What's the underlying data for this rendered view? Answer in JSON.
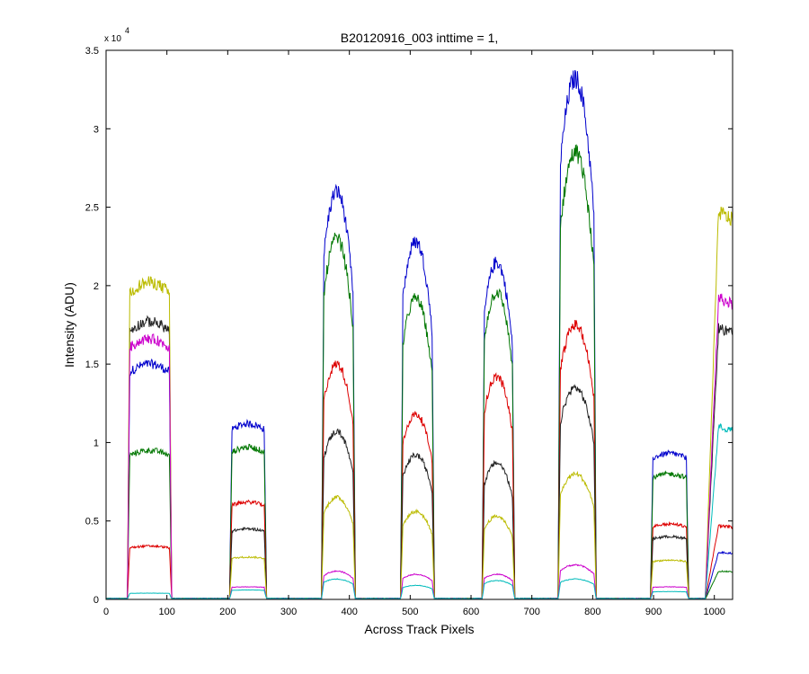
{
  "chart_data": {
    "type": "line",
    "title": "B20120916_003 inttime = 1,",
    "xlabel": "Across Track Pixels",
    "ylabel": "Intensity (ADU)",
    "y_multiplier_text": "x 10",
    "y_multiplier_exponent": "4",
    "xlim": [
      0,
      1030
    ],
    "ylim": [
      0,
      35000
    ],
    "xticks": [
      0,
      100,
      200,
      300,
      400,
      500,
      600,
      700,
      800,
      900,
      1000
    ],
    "yticks": [
      0,
      5000,
      10000,
      15000,
      20000,
      25000,
      30000,
      35000
    ],
    "xtick_labels": [
      "0",
      "100",
      "200",
      "300",
      "400",
      "500",
      "600",
      "700",
      "800",
      "900",
      "1000"
    ],
    "ytick_labels": [
      "0",
      "0.5",
      "1",
      "1.5",
      "2",
      "2.5",
      "3",
      "3.5"
    ],
    "grid": false,
    "legend": "none",
    "segments": [
      {
        "start": 35,
        "end": 108,
        "shape": "flat"
      },
      {
        "start": 203,
        "end": 264,
        "shape": "flat"
      },
      {
        "start": 354,
        "end": 410,
        "shape": "dome"
      },
      {
        "start": 484,
        "end": 540,
        "shape": "dome"
      },
      {
        "start": 618,
        "end": 672,
        "shape": "dome"
      },
      {
        "start": 743,
        "end": 806,
        "shape": "dome"
      },
      {
        "start": 895,
        "end": 958,
        "shape": "flat"
      },
      {
        "start": 985,
        "end": 1030,
        "shape": "rise"
      }
    ],
    "series": [
      {
        "color": "#0000cc",
        "peaks": [
          15000,
          11200,
          26000,
          22800,
          21500,
          33200,
          9300,
          3000
        ]
      },
      {
        "color": "#007700",
        "peaks": [
          9500,
          9700,
          23000,
          19200,
          19600,
          28500,
          8000,
          1800
        ]
      },
      {
        "color": "#dd0000",
        "peaks": [
          3400,
          6200,
          15000,
          11800,
          14200,
          17500,
          4800,
          4700
        ]
      },
      {
        "color": "#222222",
        "peaks": [
          17700,
          4500,
          10700,
          9200,
          8700,
          13500,
          4000,
          17300
        ]
      },
      {
        "color": "#bbbb00",
        "peaks": [
          20200,
          2700,
          6500,
          5600,
          5300,
          8000,
          2500,
          24700
        ]
      },
      {
        "color": "#cc00cc",
        "peaks": [
          16600,
          800,
          1800,
          1600,
          1600,
          2200,
          800,
          19200
        ]
      },
      {
        "color": "#00bbbb",
        "peaks": [
          400,
          600,
          1300,
          900,
          1200,
          1300,
          500,
          11000
        ]
      }
    ]
  }
}
